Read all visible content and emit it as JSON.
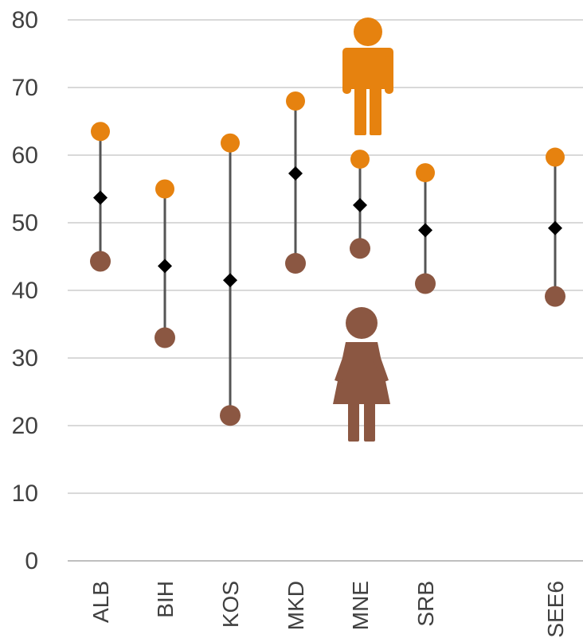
{
  "chart_data": {
    "type": "scatter",
    "categories": [
      "ALB",
      "BIH",
      "KOS",
      "MKD",
      "MNE",
      "SRB",
      "SEE6"
    ],
    "series": [
      {
        "values": [
          63.5,
          55.0,
          61.8,
          68.0,
          59.4,
          57.4,
          59.7
        ]
      },
      {
        "values": [
          53.7,
          43.6,
          41.5,
          57.3,
          52.6,
          48.9,
          49.2
        ]
      },
      {
        "values": [
          44.3,
          33.0,
          21.5,
          44.0,
          46.2,
          41.0,
          39.1
        ]
      }
    ],
    "ylim": [
      0,
      80
    ],
    "yticks": [
      "0",
      "10",
      "20",
      "30",
      "40",
      "50",
      "60",
      "70",
      "80"
    ],
    "grid": true,
    "colors": {
      "male": "#E6820F",
      "female": "#8B5742",
      "total": "#000000",
      "range_line": "#555555",
      "grid": "#D9D9D9",
      "axis_text": "#404040"
    },
    "icons": {
      "male": "man-icon",
      "female": "woman-icon"
    }
  }
}
